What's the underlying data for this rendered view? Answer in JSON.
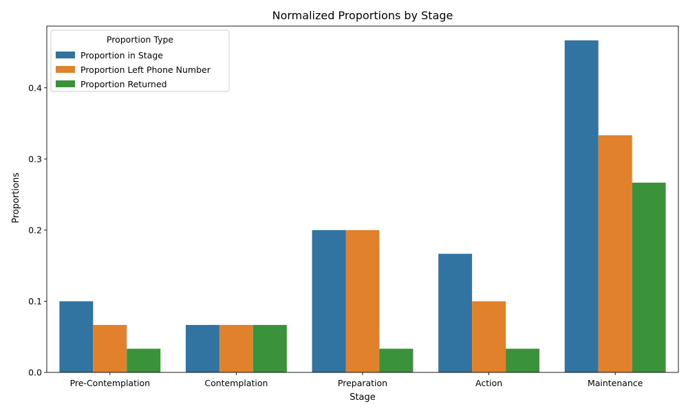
{
  "chart_data": {
    "type": "bar",
    "title": "Normalized Proportions by Stage",
    "xlabel": "Stage",
    "ylabel": "Proportions",
    "categories": [
      "Pre-Contemplation",
      "Contemplation",
      "Preparation",
      "Action",
      "Maintenance"
    ],
    "ylim": [
      0,
      0.4867
    ],
    "yticks": [
      "0.0",
      "0.1",
      "0.2",
      "0.3",
      "0.4"
    ],
    "grid": false,
    "legend": {
      "title": "Proportion Type",
      "placement": "top-left"
    },
    "series": [
      {
        "name": "Proportion in Stage",
        "color": "#3274a1",
        "values": [
          0.1,
          0.0667,
          0.2,
          0.1667,
          0.4667
        ]
      },
      {
        "name": "Proportion Left Phone Number",
        "color": "#e1812c",
        "values": [
          0.0667,
          0.0667,
          0.2,
          0.1,
          0.3333
        ]
      },
      {
        "name": "Proportion Returned",
        "color": "#3a923a",
        "values": [
          0.0333,
          0.0667,
          0.0333,
          0.0333,
          0.2667
        ]
      }
    ]
  }
}
